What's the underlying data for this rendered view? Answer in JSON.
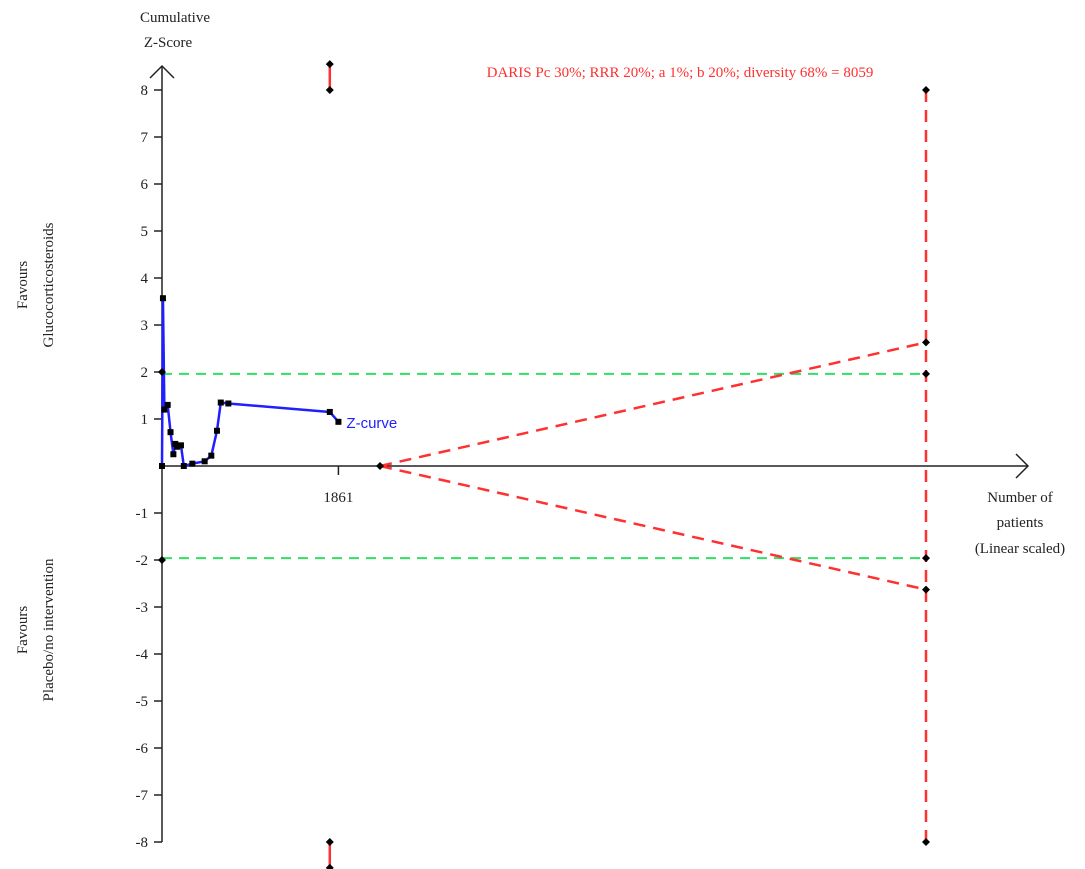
{
  "chart_data": {
    "type": "line",
    "title": "",
    "ylabel_lines": [
      "Cumulative",
      "Z-Score"
    ],
    "xlabel_lines": [
      "Number of",
      "patients",
      "(Linear scaled)"
    ],
    "upper_side_lines": [
      "Favours",
      "Glucocorticosteroids"
    ],
    "lower_side_lines": [
      "Favours",
      "Placebo/no intervention"
    ],
    "ylim": [
      -8,
      8
    ],
    "y_ticks": [
      8,
      7,
      6,
      5,
      4,
      3,
      2,
      1,
      -1,
      -2,
      -3,
      -4,
      -5,
      -6,
      -7,
      -8
    ],
    "y_tick_labels": [
      "8",
      "7",
      "6",
      "5",
      "4",
      "3",
      "2",
      "1",
      "-1",
      "-2",
      "-3",
      "-4",
      "-5",
      "-6",
      "-7",
      "-8"
    ],
    "x_tick_value": 1861,
    "x_tick_label": "1861",
    "ris_label": "DARIS  Pc 30%; RRR 20%; a 1%; b 20%; diversity 68% = 8059",
    "ris_value": 8059,
    "z_curve": {
      "name": "Z-curve",
      "x": [
        0,
        10,
        25,
        60,
        90,
        120,
        140,
        160,
        200,
        230,
        320,
        450,
        520,
        580,
        620,
        700,
        1770,
        1861
      ],
      "y": [
        0,
        3.57,
        1.2,
        1.3,
        0.72,
        0.25,
        0.47,
        0.41,
        0.44,
        0.0,
        0.05,
        0.1,
        0.22,
        0.75,
        1.35,
        1.33,
        1.15,
        0.94
      ]
    },
    "conventional_boundaries": [
      1.96,
      -1.96
    ],
    "monitoring_boundary": {
      "x": [
        2300,
        8059
      ],
      "upper_y": [
        0,
        2.63
      ],
      "lower_y": [
        0,
        -2.63
      ]
    },
    "futility_marker": {
      "x": 1770,
      "upper_y": [
        8.0,
        8.55
      ],
      "lower_y": [
        -8.0,
        -8.55
      ]
    },
    "colors": {
      "z_curve": "#1f1fff",
      "boundary": "#ff3030",
      "conventional": "#33dd66",
      "axis": "#222222",
      "marker": "#000000"
    }
  }
}
